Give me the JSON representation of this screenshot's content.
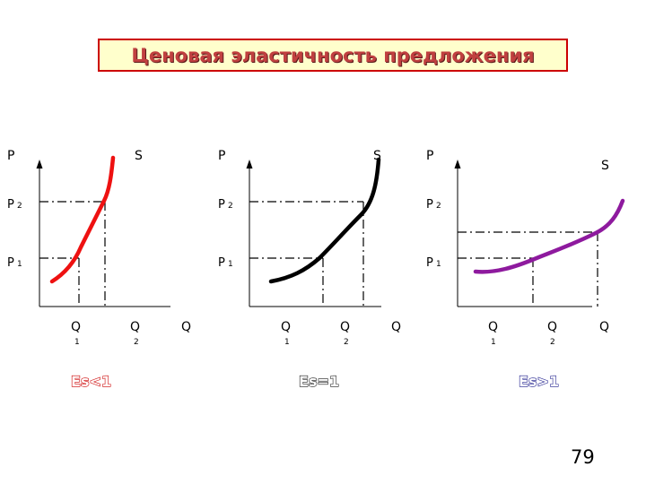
{
  "title": "Ценовая эластичность предложения",
  "page_number": "79",
  "colors": {
    "panel1": "#ee1111",
    "panel2": "#000000",
    "panel3": "#8e1a9e",
    "title_bg": "#ffffcc",
    "title_border": "#cc0000"
  },
  "panels": [
    {
      "p": "P",
      "p2": "P",
      "p1": "P",
      "p2_sub": "2",
      "p1_sub": "1",
      "s": "S",
      "q": "Q",
      "q1": "Q",
      "q2": "Q",
      "q1_sub": "1",
      "q2_sub": "2",
      "e_main": "E",
      "e_sub": "s",
      "e_rel": "<1"
    },
    {
      "p": "P",
      "p2": "P",
      "p1": "P",
      "p2_sub": "2",
      "p1_sub": "1",
      "s": "S",
      "q": "Q",
      "q1": "Q",
      "q2": "Q",
      "q1_sub": "1",
      "q2_sub": "2",
      "e_main": "E",
      "e_sub": "s",
      "e_rel": "=1"
    },
    {
      "p": "P",
      "p2": "P",
      "p1": "P",
      "p2_sub": "2",
      "p1_sub": "1",
      "s": "S",
      "q": "Q",
      "q1": "Q",
      "q2": "Q",
      "q1_sub": "1",
      "q2_sub": "2",
      "e_main": "E",
      "e_sub": "s",
      "e_rel": ">1"
    }
  ]
}
